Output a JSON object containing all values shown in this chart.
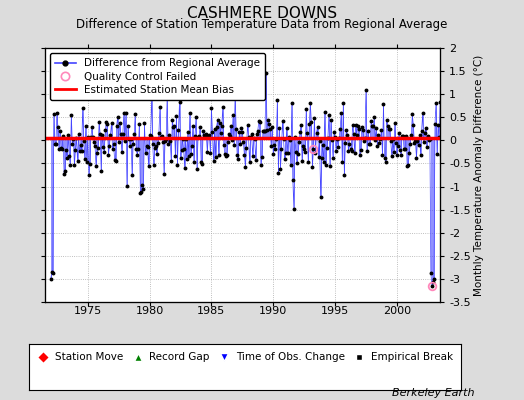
{
  "title": "CASHMERE DOWNS",
  "subtitle": "Difference of Station Temperature Data from Regional Average",
  "ylabel": "Monthly Temperature Anomaly Difference (°C)",
  "bias_value": 0.05,
  "ylim": [
    -3.5,
    2.0
  ],
  "xlim": [
    1971.5,
    2003.5
  ],
  "xticks": [
    1975,
    1980,
    1985,
    1990,
    1995,
    2000
  ],
  "yticks": [
    -3.5,
    -3.0,
    -2.5,
    -2.0,
    -1.5,
    -1.0,
    -0.5,
    0.0,
    0.5,
    1.0,
    1.5,
    2.0
  ],
  "line_color": "#4444FF",
  "bias_color": "#FF0000",
  "qc_fail_color": "#FF88BB",
  "background_color": "#DCDCDC",
  "plot_bg_color": "#FFFFFF",
  "title_fontsize": 11,
  "subtitle_fontsize": 8.5,
  "axis_label_fontsize": 7.5,
  "tick_fontsize": 8,
  "legend_fontsize": 7.5,
  "berkeley_earth_fontsize": 8,
  "seed": 42,
  "start_year": 1972.0,
  "end_year": 2003.75,
  "n_months": 382,
  "qc_fail_times": [
    1993.25,
    2002.83
  ],
  "bias_value_display": 0.05
}
